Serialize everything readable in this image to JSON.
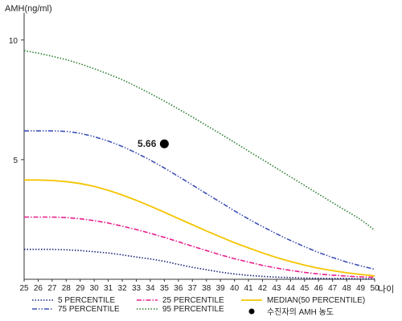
{
  "chart_data": {
    "type": "line",
    "ylabel": "AMH(ng/ml)",
    "xlabel": "나이",
    "x": [
      25,
      26,
      27,
      28,
      29,
      30,
      31,
      32,
      33,
      34,
      35,
      36,
      37,
      38,
      39,
      40,
      41,
      42,
      43,
      44,
      45,
      46,
      47,
      48,
      49,
      50
    ],
    "xlim": [
      25,
      50
    ],
    "ylim": [
      0,
      11
    ],
    "y_ticks": [
      5,
      10
    ],
    "grid": false,
    "legend_position": "bottom",
    "series": [
      {
        "name": "5 PERCENTILE",
        "color": "#1a237e",
        "dash": "dotted",
        "values": [
          1.25,
          1.25,
          1.25,
          1.23,
          1.2,
          1.15,
          1.1,
          1.02,
          0.93,
          0.85,
          0.75,
          0.62,
          0.5,
          0.4,
          0.3,
          0.22,
          0.16,
          0.12,
          0.09,
          0.07,
          0.05,
          0.04,
          0.03,
          0.03,
          0.02,
          0.02
        ]
      },
      {
        "name": "25 PERCENTILE",
        "color": "#e91e8c",
        "dash": "dashdot",
        "values": [
          2.6,
          2.6,
          2.6,
          2.58,
          2.53,
          2.45,
          2.35,
          2.22,
          2.08,
          1.92,
          1.75,
          1.57,
          1.38,
          1.2,
          1.02,
          0.86,
          0.72,
          0.58,
          0.47,
          0.37,
          0.29,
          0.22,
          0.17,
          0.13,
          0.1,
          0.08
        ]
      },
      {
        "name": "MEDIAN(50 PERCENTILE)",
        "color": "#f5c400",
        "dash": "solid",
        "values": [
          4.15,
          4.15,
          4.13,
          4.08,
          4.0,
          3.88,
          3.72,
          3.52,
          3.3,
          3.06,
          2.8,
          2.54,
          2.28,
          2.02,
          1.77,
          1.53,
          1.31,
          1.1,
          0.91,
          0.74,
          0.59,
          0.46,
          0.36,
          0.27,
          0.2,
          0.14
        ]
      },
      {
        "name": "75 PERCENTILE",
        "color": "#3f51b5",
        "dash": "dashdotdot",
        "values": [
          6.2,
          6.2,
          6.2,
          6.18,
          6.1,
          5.96,
          5.78,
          5.55,
          5.28,
          4.98,
          4.65,
          4.3,
          3.94,
          3.58,
          3.22,
          2.86,
          2.52,
          2.2,
          1.9,
          1.62,
          1.36,
          1.12,
          0.91,
          0.72,
          0.56,
          0.42
        ]
      },
      {
        "name": "95 PERCENTILE",
        "color": "#2e7d32",
        "dash": "dotted",
        "values": [
          9.55,
          9.45,
          9.32,
          9.18,
          9.0,
          8.8,
          8.58,
          8.34,
          8.06,
          7.76,
          7.45,
          7.12,
          6.78,
          6.43,
          6.08,
          5.72,
          5.36,
          5.0,
          4.64,
          4.28,
          3.92,
          3.56,
          3.2,
          2.85,
          2.5,
          2.05
        ]
      }
    ],
    "point": {
      "name": "수진자의 AMH 농도",
      "x": 35,
      "y": 5.66,
      "label": "5.66",
      "color": "#000000"
    }
  }
}
